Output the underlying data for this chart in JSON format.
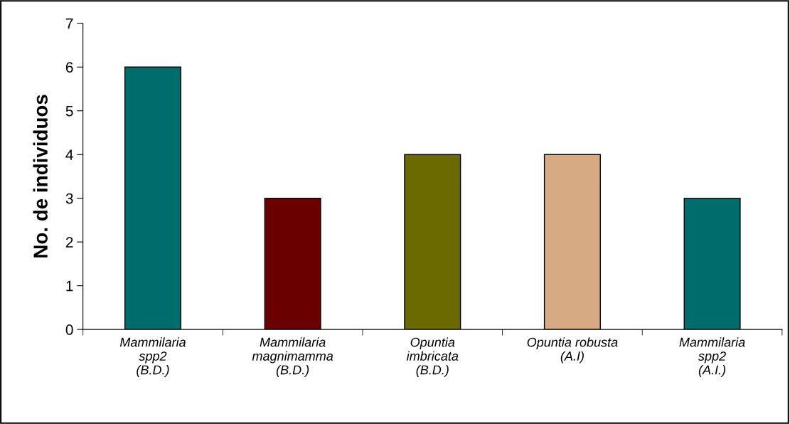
{
  "chart_data": {
    "type": "bar",
    "ylabel": "No. de individuos",
    "categories": [
      "Mammilaria\nspp2\n(B.D.)",
      "Mammilaria\nmagnimamma\n(B.D.)",
      "Opuntia\nimbricata\n(B.D.)",
      "Opuntia robusta\n(A.I)",
      "Mammilaria\nspp2\n(A.I.)"
    ],
    "values": [
      6,
      3,
      4,
      4,
      3
    ],
    "colors": [
      "#006d6d",
      "#6a0000",
      "#6a6a00",
      "#d6aa82",
      "#006d6d"
    ],
    "ylim": [
      0,
      7
    ],
    "yticks": [
      0,
      1,
      2,
      3,
      4,
      5,
      6,
      7
    ],
    "grid": false,
    "legend": false
  }
}
